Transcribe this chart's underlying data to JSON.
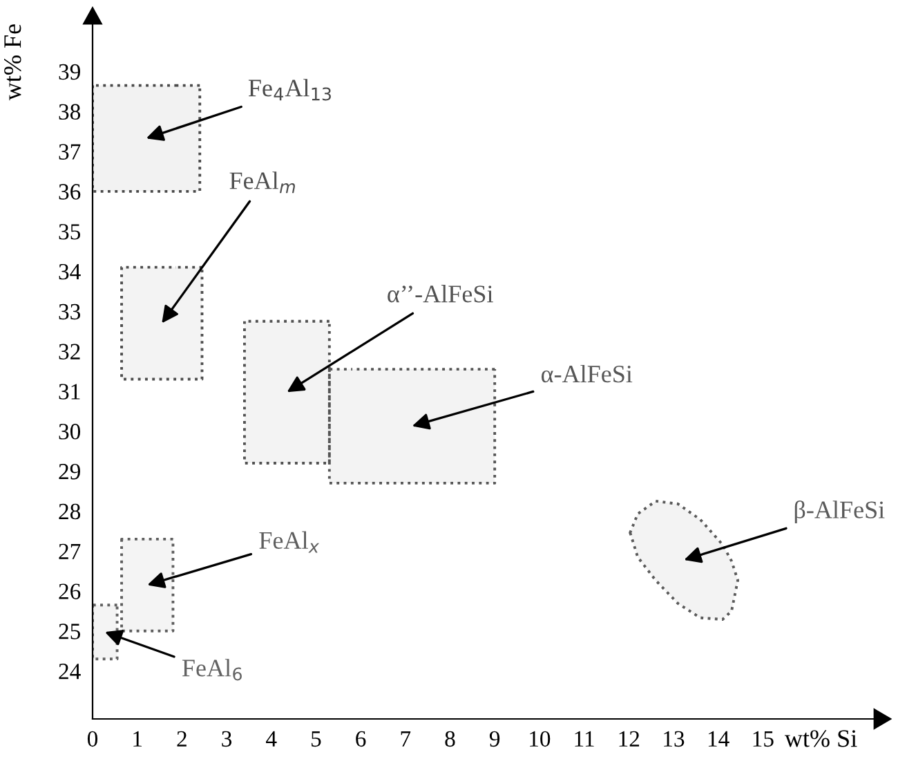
{
  "chart_data": {
    "type": "line",
    "xlabel": "wt% Si",
    "ylabel": "wt% Fe",
    "xlim": [
      0,
      17.5
    ],
    "ylim": [
      22.8,
      40.2
    ],
    "xticks": [
      0,
      1,
      2,
      3,
      4,
      5,
      6,
      7,
      8,
      9,
      10,
      11,
      12,
      13,
      14,
      15
    ],
    "yticks": [
      24,
      25,
      26,
      27,
      28,
      29,
      30,
      31,
      32,
      33,
      34,
      35,
      36,
      37,
      38,
      39
    ],
    "grid": false,
    "legend": false,
    "line_style": "dotted",
    "series": [
      {
        "name": "Fe$_{4}$Al$_{13}$",
        "color": "#4a4a4a",
        "x": [
          0,
          2.4
        ],
        "values": [
          null,
          null
        ],
        "lower": [
          36.0,
          36.0
        ],
        "upper": [
          38.65,
          38.65
        ]
      },
      {
        "name": "FeAl$_{m}$",
        "color": "#4e4e4e",
        "x": [
          0.65,
          2.45
        ],
        "values": [
          null,
          null
        ],
        "lower": [
          31.3,
          31.3
        ],
        "upper": [
          34.1,
          34.1
        ]
      },
      {
        "name": "α’’-AlFeSi",
        "color": "#525252",
        "x": [
          3.4,
          5.3
        ],
        "values": [
          null,
          null
        ],
        "lower": [
          29.2,
          29.2
        ],
        "upper": [
          32.75,
          32.75
        ]
      },
      {
        "name": "α-AlFeSi",
        "color": "#565656",
        "x": [
          5.3,
          9.0
        ],
        "values": [
          null,
          null
        ],
        "lower": [
          28.7,
          28.7
        ],
        "upper": [
          31.55,
          31.55
        ]
      },
      {
        "name": "β-AlFeSi",
        "color": "#5a5a5a",
        "x": [
          12.03,
          12.2,
          12.6,
          13.1,
          13.6,
          14.1,
          14.3,
          14.44
        ],
        "values": [
          null,
          null,
          null,
          null,
          null,
          null,
          null,
          null
        ],
        "lower": [
          27.46,
          26.85,
          26.27,
          25.69,
          25.33,
          25.29,
          25.5,
          26.27
        ],
        "upper": [
          27.46,
          27.93,
          28.25,
          28.18,
          27.79,
          27.16,
          26.75,
          26.27
        ]
      },
      {
        "name": "FeAl$_{x}$",
        "color": "#5e5e5e",
        "x": [
          0.65,
          1.8
        ],
        "values": [
          null,
          null
        ],
        "lower": [
          25.0,
          25.0
        ],
        "upper": [
          27.3,
          27.3
        ]
      },
      {
        "name": "FeAl$_{6}$",
        "color": "#626262",
        "x": [
          0,
          0.55
        ],
        "values": [
          null,
          null
        ],
        "lower": [
          24.3,
          24.3
        ],
        "upper": [
          25.65,
          25.65
        ]
      }
    ]
  }
}
